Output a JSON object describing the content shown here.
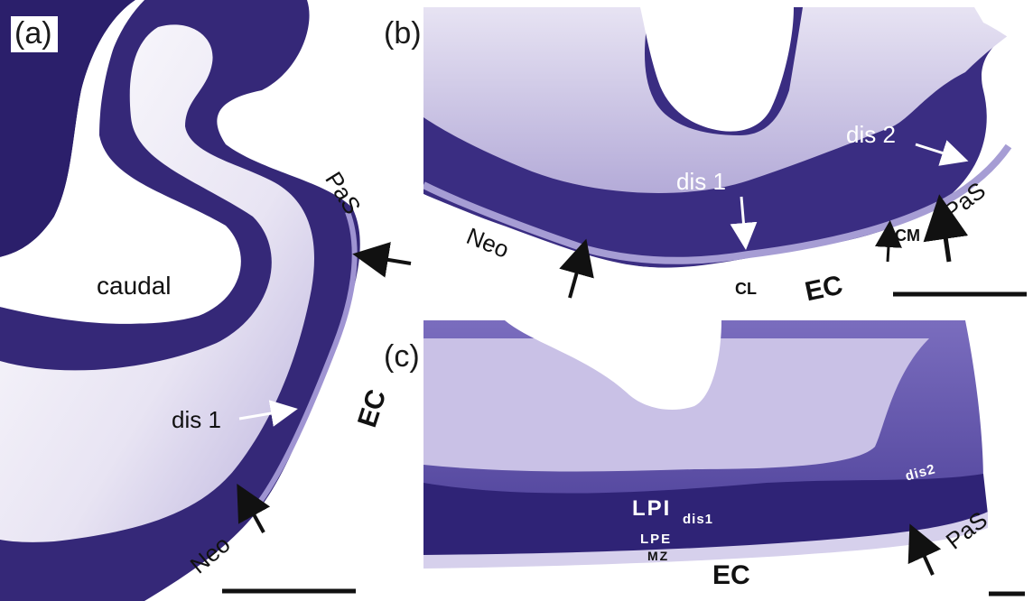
{
  "panels": [
    {
      "label": "(a)"
    },
    {
      "label": "(b)"
    },
    {
      "label": "(c)"
    }
  ],
  "annotations": {
    "a": {
      "caudal": "caudal",
      "pas": "PaS",
      "ec": "EC",
      "dis1": "dis 1",
      "neo": "Neo"
    },
    "b": {
      "dis2": "dis 2",
      "dis1": "dis 1",
      "pas": "PaS",
      "neo": "Neo",
      "cm": "CM",
      "cl": "CL",
      "ec": "EC"
    },
    "c": {
      "lpi": "LPI",
      "dis1": "dis1",
      "lpe": "LPE",
      "mz": "MZ",
      "dis2": "dis2",
      "pas": "PaS",
      "ec": "EC"
    }
  },
  "colors": {
    "stain_dark": "#2b1f6b",
    "stain_mid": "#6b5cb0",
    "stain_light": "#d9d4ee",
    "background": "#ffffff"
  }
}
